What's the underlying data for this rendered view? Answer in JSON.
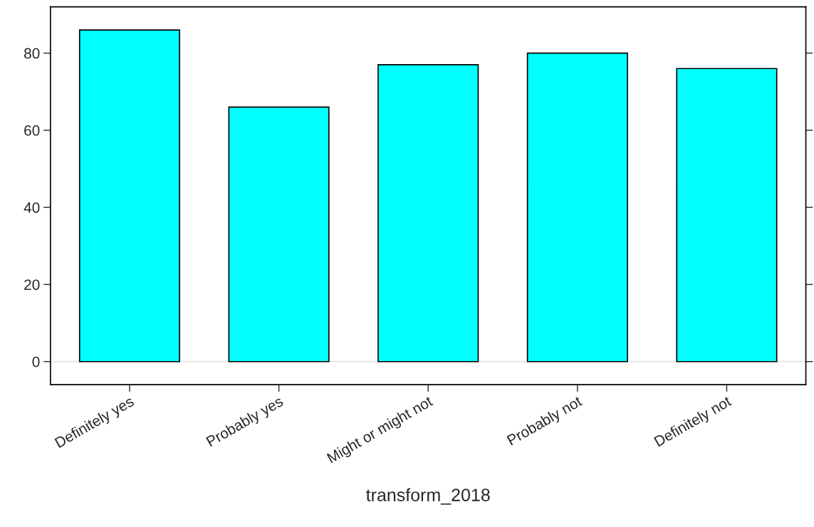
{
  "chart_data": {
    "type": "bar",
    "xlabel": "transform_2018",
    "categories": [
      "Definitely yes",
      "Probably yes",
      "Might or might not",
      "Probably not",
      "Definitely not"
    ],
    "values": [
      86,
      66,
      77,
      80,
      76
    ],
    "color": "#00ffff",
    "ylim": [
      -6,
      92
    ],
    "yticks": [
      0,
      20,
      40,
      60,
      80
    ],
    "grid": false,
    "ref_lines": [
      {
        "axis": "y",
        "value": 0,
        "color": "#e6e6e6"
      }
    ]
  }
}
